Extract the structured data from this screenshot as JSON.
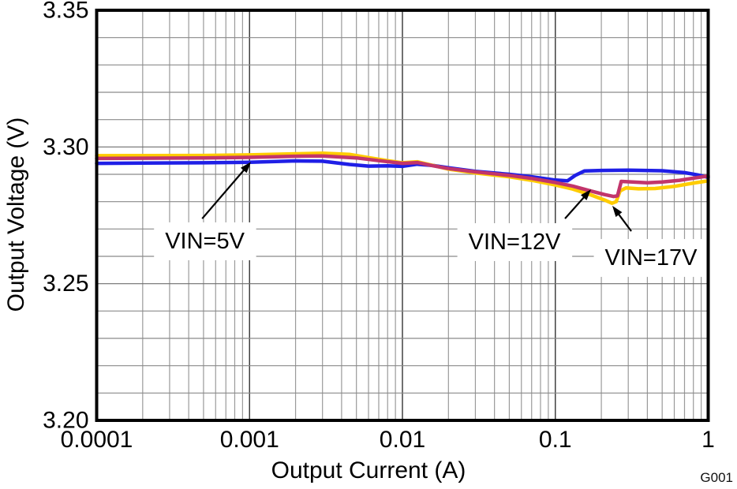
{
  "chart_data": {
    "type": "line",
    "title": "",
    "xlabel": "Output Current (A)",
    "ylabel": "Output Voltage (V)",
    "figure_id": "G001",
    "grid": "on",
    "legend_position": "none",
    "x_axis": {
      "scale": "log",
      "min": 0.0001,
      "max": 1,
      "ticks": [
        0.0001,
        0.001,
        0.01,
        0.1,
        1
      ],
      "tick_labels": [
        "0.0001",
        "0.001",
        "0.01",
        "0.1",
        "1"
      ]
    },
    "y_axis": {
      "scale": "linear",
      "min": 3.2,
      "max": 3.35,
      "ticks": [
        3.2,
        3.25,
        3.3,
        3.35
      ],
      "tick_labels": [
        "3.20",
        "3.25",
        "3.30",
        "3.35"
      ],
      "minor_step": 0.01
    },
    "series": [
      {
        "name": "VIN=5V",
        "color": "#1F1FE6",
        "points": [
          [
            0.0001,
            3.294
          ],
          [
            0.0002,
            3.2941
          ],
          [
            0.0005,
            3.2942
          ],
          [
            0.001,
            3.2944
          ],
          [
            0.002,
            3.2949
          ],
          [
            0.003,
            3.2948
          ],
          [
            0.0045,
            3.2936
          ],
          [
            0.006,
            3.293
          ],
          [
            0.008,
            3.2931
          ],
          [
            0.01,
            3.2929
          ],
          [
            0.0125,
            3.2937
          ],
          [
            0.016,
            3.2932
          ],
          [
            0.02,
            3.2924
          ],
          [
            0.03,
            3.2911
          ],
          [
            0.05,
            3.29
          ],
          [
            0.07,
            3.2891
          ],
          [
            0.1,
            3.2879
          ],
          [
            0.12,
            3.2876
          ],
          [
            0.135,
            3.2896
          ],
          [
            0.155,
            3.2912
          ],
          [
            0.2,
            3.2914
          ],
          [
            0.3,
            3.2915
          ],
          [
            0.5,
            3.2913
          ],
          [
            0.7,
            3.2906
          ],
          [
            0.85,
            3.2898
          ],
          [
            1.0,
            3.2889
          ]
        ]
      },
      {
        "name": "VIN=17V",
        "color": "#FFCC00",
        "points": [
          [
            0.0001,
            3.2968
          ],
          [
            0.0005,
            3.2969
          ],
          [
            0.001,
            3.2971
          ],
          [
            0.002,
            3.2975
          ],
          [
            0.003,
            3.2977
          ],
          [
            0.0045,
            3.2973
          ],
          [
            0.006,
            3.2961
          ],
          [
            0.008,
            3.295
          ],
          [
            0.01,
            3.2942
          ],
          [
            0.0125,
            3.2946
          ],
          [
            0.016,
            3.2932
          ],
          [
            0.02,
            3.2919
          ],
          [
            0.03,
            3.2905
          ],
          [
            0.05,
            3.2891
          ],
          [
            0.07,
            3.2878
          ],
          [
            0.1,
            3.2861
          ],
          [
            0.13,
            3.2846
          ],
          [
            0.17,
            3.2825
          ],
          [
            0.21,
            3.2806
          ],
          [
            0.235,
            3.2794
          ],
          [
            0.25,
            3.28
          ],
          [
            0.265,
            3.2839
          ],
          [
            0.29,
            3.285
          ],
          [
            0.35,
            3.2847
          ],
          [
            0.45,
            3.2848
          ],
          [
            0.6,
            3.2856
          ],
          [
            0.8,
            3.2868
          ],
          [
            1.0,
            3.2876
          ]
        ]
      },
      {
        "name": "VIN=12V",
        "color": "#C2356B",
        "points": [
          [
            0.0001,
            3.2958
          ],
          [
            0.0005,
            3.296
          ],
          [
            0.001,
            3.2962
          ],
          [
            0.002,
            3.2966
          ],
          [
            0.003,
            3.2967
          ],
          [
            0.005,
            3.296
          ],
          [
            0.007,
            3.295
          ],
          [
            0.01,
            3.294
          ],
          [
            0.0125,
            3.2943
          ],
          [
            0.016,
            3.2931
          ],
          [
            0.02,
            3.2921
          ],
          [
            0.03,
            3.2909
          ],
          [
            0.05,
            3.2896
          ],
          [
            0.07,
            3.2885
          ],
          [
            0.1,
            3.287
          ],
          [
            0.13,
            3.2857
          ],
          [
            0.17,
            3.2839
          ],
          [
            0.21,
            3.2826
          ],
          [
            0.24,
            3.2819
          ],
          [
            0.255,
            3.2821
          ],
          [
            0.27,
            3.2874
          ],
          [
            0.32,
            3.2872
          ],
          [
            0.4,
            3.2869
          ],
          [
            0.5,
            3.2872
          ],
          [
            0.65,
            3.2878
          ],
          [
            0.8,
            3.2886
          ],
          [
            1.0,
            3.2894
          ]
        ]
      }
    ],
    "annotations": [
      {
        "label": "VIN=5V",
        "label_x": 0.00051,
        "label_v": 3.2655,
        "from_x": 0.00049,
        "from_v": 3.2738,
        "tip_x": 0.00102,
        "tip_v": 3.2945
      },
      {
        "label": "VIN=12V",
        "label_x": 0.0541,
        "label_v": 3.2652,
        "from_x": 0.1157,
        "from_v": 3.2738,
        "tip_x": 0.1712,
        "tip_v": 3.2845
      },
      {
        "label": "VIN=17V",
        "label_x": 0.4225,
        "label_v": 3.2594,
        "from_x": 0.314,
        "from_v": 3.2692,
        "tip_x": 0.236,
        "tip_v": 3.2785
      }
    ]
  }
}
